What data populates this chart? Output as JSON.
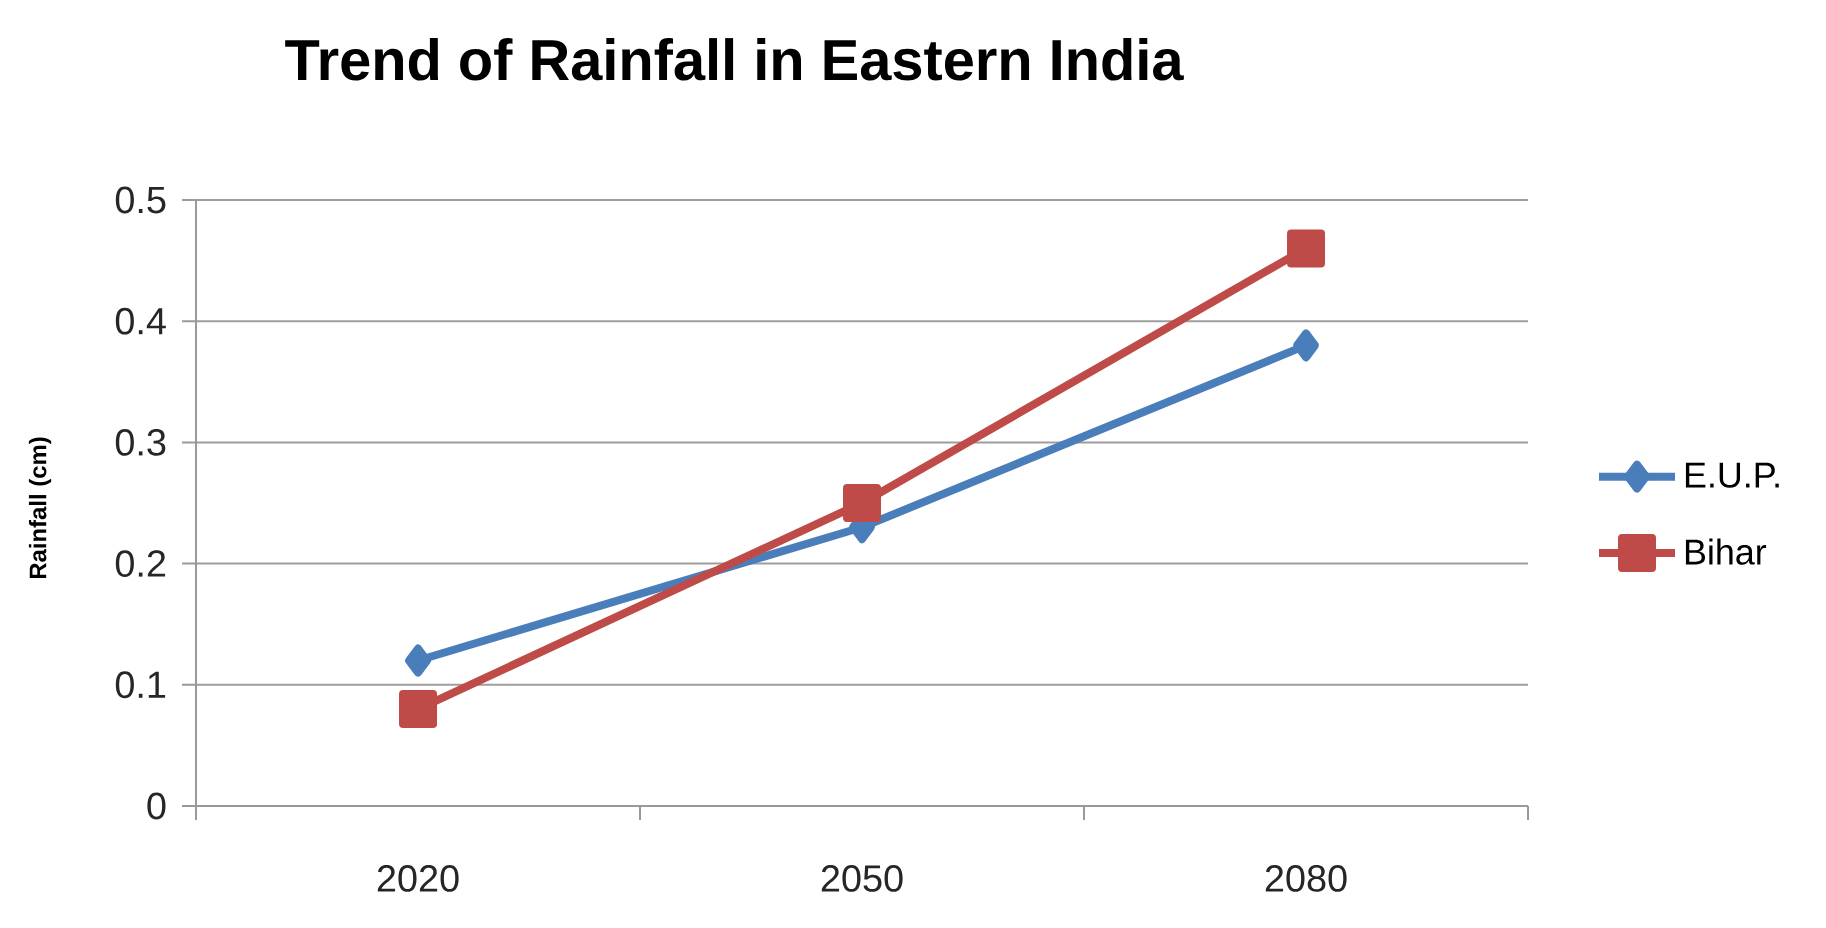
{
  "chart_data": {
    "type": "line",
    "title": "Trend of Rainfall in Eastern India",
    "ylabel": "Rainfall (cm)",
    "categories": [
      "2020",
      "2050",
      "2080"
    ],
    "series": [
      {
        "name": "E.U.P.",
        "color": "#4a7ebb",
        "marker": "diamond",
        "values": [
          0.12,
          0.23,
          0.38
        ]
      },
      {
        "name": "Bihar",
        "color": "#be4b48",
        "marker": "square",
        "values": [
          0.08,
          0.25,
          0.46
        ]
      }
    ],
    "ylim": [
      0,
      0.5
    ],
    "yticks": [
      0,
      0.1,
      0.2,
      0.3,
      0.4,
      0.5
    ],
    "grid": "y",
    "legend": "right",
    "line_style": "solid"
  }
}
